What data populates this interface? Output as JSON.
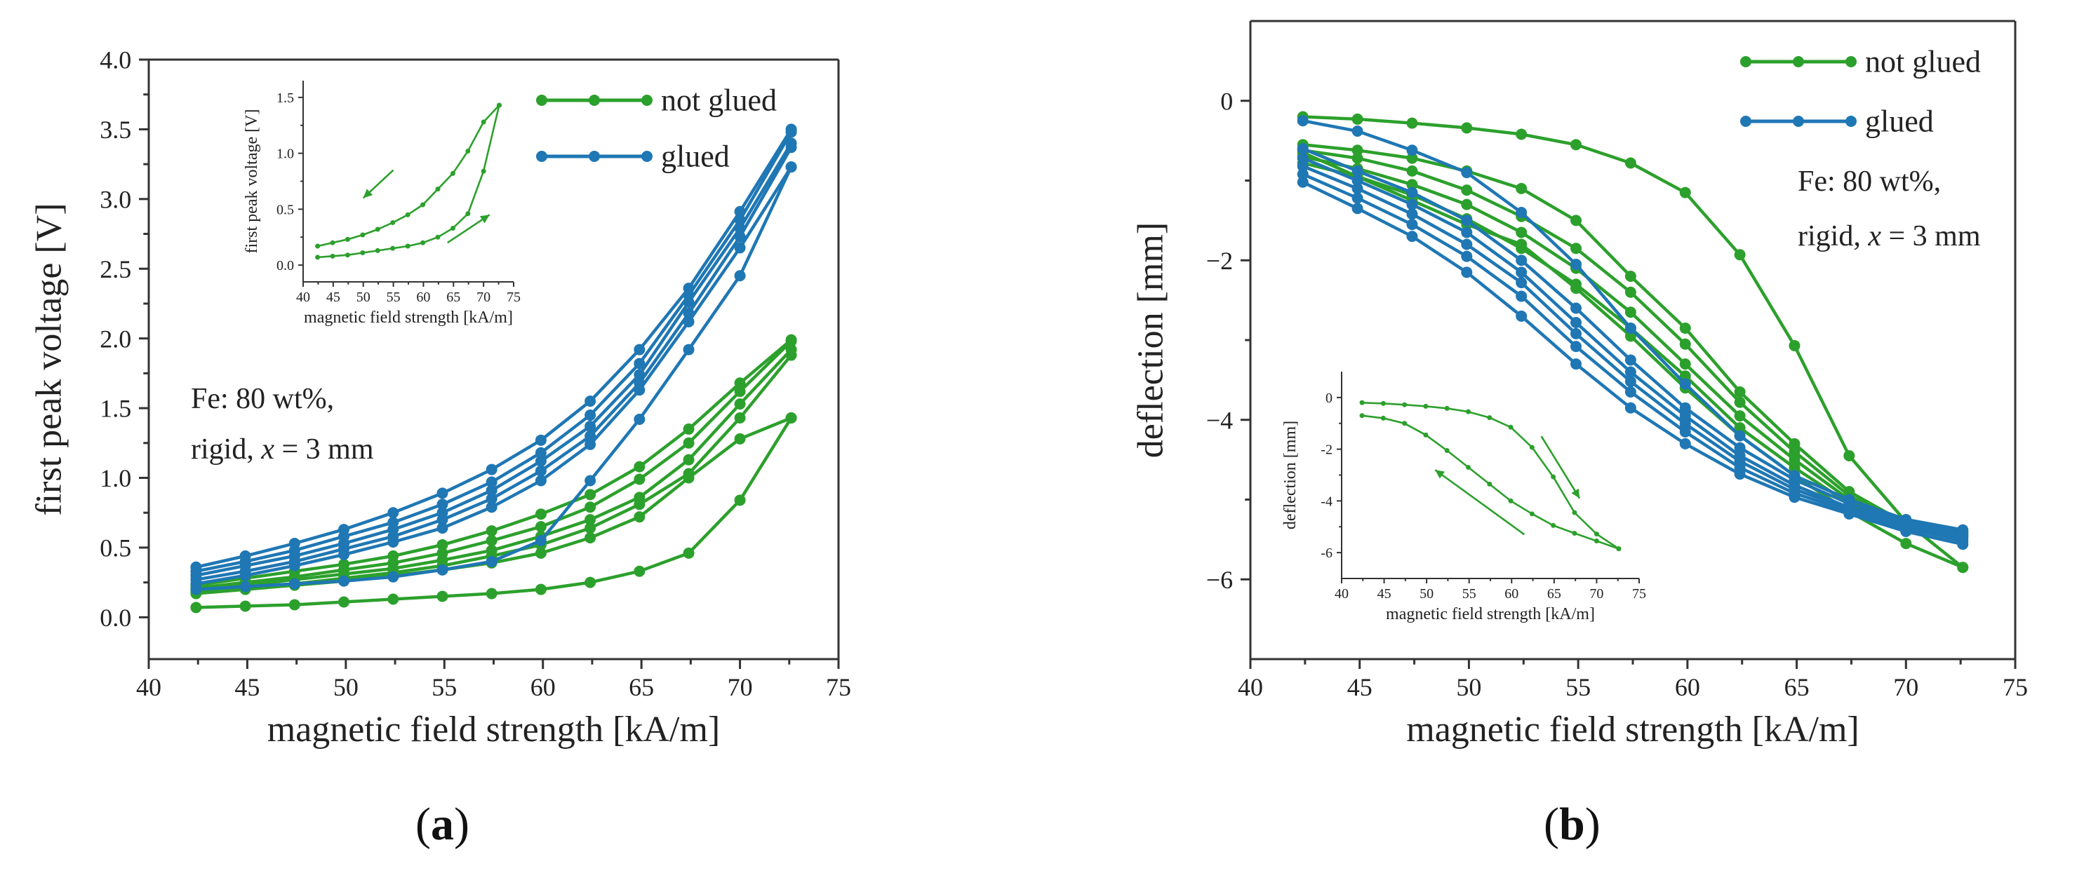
{
  "colors": {
    "not_glued": "#2ca02c",
    "glued": "#1f77b4",
    "axis": "#333333"
  },
  "panel_labels": [
    {
      "open": "(",
      "letter": "a",
      "close": ")"
    },
    {
      "open": "(",
      "letter": "b",
      "close": ")"
    }
  ],
  "chart_data": [
    {
      "id": "a",
      "type": "line",
      "title": "",
      "xlabel": "magnetic field strength [kA/m]",
      "ylabel": "first peak voltage [V]",
      "xlim": [
        40,
        75
      ],
      "ylim": [
        -0.3,
        4.0
      ],
      "xticks": [
        40,
        45,
        50,
        55,
        60,
        65,
        70,
        75
      ],
      "yticks": [
        0.0,
        0.5,
        1.0,
        1.5,
        2.0,
        2.5,
        3.0,
        3.5,
        4.0
      ],
      "ytick_labels": [
        "0.0",
        "0.5",
        "1.0",
        "1.5",
        "2.0",
        "2.5",
        "3.0",
        "3.5",
        "4.0"
      ],
      "legend": {
        "position": "top-right",
        "entries": [
          {
            "label": "not glued",
            "group": "not_glued"
          },
          {
            "label": "glued",
            "group": "glued"
          }
        ]
      },
      "annotation": {
        "line1": "Fe: 80 wt%,",
        "line2_prefix": "rigid, ",
        "line2_var": "x",
        "line2_suffix": " = 3 mm"
      },
      "x": [
        42.4,
        44.9,
        47.4,
        49.9,
        52.4,
        54.9,
        57.4,
        59.9,
        62.4,
        64.9,
        67.4,
        70.0,
        72.6
      ],
      "series": [
        {
          "name": "not glued 1",
          "group": "not_glued",
          "values": [
            0.07,
            0.08,
            0.09,
            0.11,
            0.13,
            0.15,
            0.17,
            0.2,
            0.25,
            0.33,
            0.46,
            0.84,
            1.43
          ]
        },
        {
          "name": "not glued 2",
          "group": "not_glued",
          "values": [
            0.17,
            0.2,
            0.23,
            0.26,
            0.3,
            0.34,
            0.39,
            0.46,
            0.57,
            0.72,
            1.0,
            1.28,
            1.43
          ]
        },
        {
          "name": "not glued 3",
          "group": "not_glued",
          "values": [
            0.18,
            0.21,
            0.24,
            0.28,
            0.32,
            0.37,
            0.44,
            0.52,
            0.64,
            0.81,
            1.03,
            1.43,
            1.88
          ]
        },
        {
          "name": "not glued 4",
          "group": "not_glued",
          "values": [
            0.2,
            0.23,
            0.27,
            0.31,
            0.35,
            0.41,
            0.48,
            0.58,
            0.7,
            0.86,
            1.13,
            1.53,
            1.92
          ]
        },
        {
          "name": "not glued 5",
          "group": "not_glued",
          "values": [
            0.21,
            0.25,
            0.29,
            0.34,
            0.39,
            0.46,
            0.55,
            0.65,
            0.79,
            0.99,
            1.25,
            1.62,
            1.98
          ]
        },
        {
          "name": "not glued 6",
          "group": "not_glued",
          "values": [
            0.23,
            0.28,
            0.33,
            0.38,
            0.44,
            0.52,
            0.62,
            0.74,
            0.88,
            1.08,
            1.35,
            1.68,
            1.99
          ]
        },
        {
          "name": "glued 1",
          "group": "glued",
          "values": [
            0.2,
            0.22,
            0.24,
            0.26,
            0.29,
            0.34,
            0.4,
            0.55,
            0.98,
            1.42,
            1.92,
            2.45,
            3.23
          ]
        },
        {
          "name": "glued 2",
          "group": "glued",
          "values": [
            0.24,
            0.3,
            0.37,
            0.45,
            0.54,
            0.64,
            0.79,
            0.98,
            1.24,
            1.63,
            2.12,
            2.65,
            3.23
          ]
        },
        {
          "name": "glued 3",
          "group": "glued",
          "values": [
            0.27,
            0.33,
            0.4,
            0.49,
            0.58,
            0.7,
            0.85,
            1.05,
            1.3,
            1.68,
            2.18,
            2.73,
            3.37
          ]
        },
        {
          "name": "glued 4",
          "group": "glued",
          "values": [
            0.3,
            0.37,
            0.44,
            0.53,
            0.63,
            0.75,
            0.91,
            1.12,
            1.37,
            1.74,
            2.26,
            2.79,
            3.4
          ]
        },
        {
          "name": "glued 5",
          "group": "glued",
          "values": [
            0.33,
            0.4,
            0.48,
            0.58,
            0.68,
            0.81,
            0.97,
            1.18,
            1.45,
            1.82,
            2.31,
            2.85,
            3.48
          ]
        },
        {
          "name": "glued 6",
          "group": "glued",
          "values": [
            0.36,
            0.44,
            0.53,
            0.63,
            0.75,
            0.89,
            1.06,
            1.27,
            1.55,
            1.92,
            2.36,
            2.91,
            3.5
          ]
        }
      ],
      "inset": {
        "xlabel": "magnetic field strength [kA/m]",
        "ylabel": "first peak voltage [V]",
        "xlim": [
          40,
          75
        ],
        "ylim": [
          -0.15,
          1.65
        ],
        "xticks": [
          40,
          45,
          50,
          55,
          60,
          65,
          70,
          75
        ],
        "yticks": [
          0.0,
          0.5,
          1.0,
          1.5
        ],
        "ytick_labels": [
          "0.0",
          "0.5",
          "1.0",
          "1.5"
        ],
        "x": [
          42.4,
          44.9,
          47.4,
          49.9,
          52.4,
          54.9,
          57.4,
          59.9,
          62.4,
          64.9,
          67.4,
          70.0,
          72.6
        ],
        "series": [
          {
            "name": "up",
            "group": "not_glued",
            "values": [
              0.07,
              0.08,
              0.09,
              0.11,
              0.13,
              0.15,
              0.17,
              0.2,
              0.25,
              0.33,
              0.46,
              0.84,
              1.43
            ]
          },
          {
            "name": "down",
            "group": "not_glued",
            "values": [
              0.17,
              0.2,
              0.23,
              0.27,
              0.32,
              0.38,
              0.45,
              0.54,
              0.68,
              0.82,
              1.02,
              1.28,
              1.43
            ]
          }
        ],
        "arrows": [
          {
            "from": [
              55,
              0.85
            ],
            "to": [
              50,
              0.6
            ]
          },
          {
            "from": [
              64,
              0.2
            ],
            "to": [
              71,
              0.45
            ]
          }
        ]
      }
    },
    {
      "id": "b",
      "type": "line",
      "title": "",
      "xlabel": "magnetic field strength [kA/m]",
      "ylabel": "deflection [mm]",
      "xlim": [
        40,
        75
      ],
      "ylim": [
        -7.0,
        1.0
      ],
      "xticks": [
        40,
        45,
        50,
        55,
        60,
        65,
        70,
        75
      ],
      "yticks": [
        -6,
        -4,
        -2,
        0
      ],
      "ytick_labels": [
        "−6",
        "−4",
        "−2",
        "0"
      ],
      "legend": {
        "position": "top-right",
        "entries": [
          {
            "label": "not glued",
            "group": "not_glued"
          },
          {
            "label": "glued",
            "group": "glued"
          }
        ]
      },
      "annotation": {
        "line1": "Fe: 80 wt%,",
        "line2_prefix": "rigid, ",
        "line2_var": "x",
        "line2_suffix": " = 3 mm"
      },
      "x": [
        42.4,
        44.9,
        47.4,
        49.9,
        52.4,
        54.9,
        57.4,
        59.9,
        62.4,
        64.9,
        67.4,
        70.0,
        72.6
      ],
      "series": [
        {
          "name": "not glued 1",
          "group": "not_glued",
          "values": [
            -0.2,
            -0.23,
            -0.28,
            -0.34,
            -0.42,
            -0.55,
            -0.78,
            -1.15,
            -1.93,
            -3.07,
            -4.45,
            -5.28,
            -5.85
          ]
        },
        {
          "name": "not glued 2",
          "group": "not_glued",
          "values": [
            -0.55,
            -0.62,
            -0.72,
            -0.88,
            -1.1,
            -1.5,
            -2.2,
            -2.85,
            -3.65,
            -4.3,
            -4.9,
            -5.3,
            -5.4
          ]
        },
        {
          "name": "not glued 3",
          "group": "not_glued",
          "values": [
            -0.62,
            -0.72,
            -0.88,
            -1.12,
            -1.45,
            -1.85,
            -2.4,
            -3.05,
            -3.78,
            -4.4,
            -4.95,
            -5.32,
            -5.42
          ]
        },
        {
          "name": "not glued 4",
          "group": "not_glued",
          "values": [
            -0.7,
            -0.85,
            -1.05,
            -1.3,
            -1.65,
            -2.1,
            -2.65,
            -3.3,
            -3.95,
            -4.5,
            -5.0,
            -5.35,
            -5.45
          ]
        },
        {
          "name": "not glued 5",
          "group": "not_glued",
          "values": [
            -0.78,
            -0.95,
            -1.18,
            -1.48,
            -1.85,
            -2.3,
            -2.85,
            -3.45,
            -4.1,
            -4.6,
            -5.05,
            -5.38,
            -5.47
          ]
        },
        {
          "name": "not glued 6",
          "group": "not_glued",
          "values": [
            -0.65,
            -0.95,
            -1.25,
            -1.55,
            -1.8,
            -2.35,
            -2.95,
            -3.6,
            -4.2,
            -4.7,
            -5.15,
            -5.55,
            -5.85
          ]
        },
        {
          "name": "glued 1",
          "group": "glued",
          "values": [
            -0.25,
            -0.38,
            -0.62,
            -0.9,
            -1.4,
            -2.05,
            -2.85,
            -3.55,
            -4.2,
            -4.7,
            -5.0,
            -5.25,
            -5.38
          ]
        },
        {
          "name": "glued 2",
          "group": "glued",
          "values": [
            -0.6,
            -0.88,
            -1.15,
            -1.5,
            -2.0,
            -2.6,
            -3.25,
            -3.85,
            -4.35,
            -4.75,
            -5.05,
            -5.28,
            -5.42
          ]
        },
        {
          "name": "glued 3",
          "group": "glued",
          "values": [
            -0.72,
            -1.0,
            -1.3,
            -1.65,
            -2.15,
            -2.78,
            -3.4,
            -3.95,
            -4.45,
            -4.82,
            -5.1,
            -5.3,
            -5.45
          ]
        },
        {
          "name": "glued 4",
          "group": "glued",
          "values": [
            -0.82,
            -1.1,
            -1.42,
            -1.8,
            -2.28,
            -2.92,
            -3.52,
            -4.05,
            -4.52,
            -4.87,
            -5.12,
            -5.33,
            -5.48
          ]
        },
        {
          "name": "glued 5",
          "group": "glued",
          "values": [
            -0.92,
            -1.22,
            -1.55,
            -1.95,
            -2.45,
            -3.08,
            -3.65,
            -4.15,
            -4.6,
            -4.92,
            -5.15,
            -5.36,
            -5.52
          ]
        },
        {
          "name": "glued 6",
          "group": "glued",
          "values": [
            -1.02,
            -1.35,
            -1.7,
            -2.15,
            -2.7,
            -3.3,
            -3.85,
            -4.3,
            -4.68,
            -4.97,
            -5.18,
            -5.4,
            -5.56
          ]
        }
      ],
      "inset": {
        "xlabel": "magnetic field strength [kA/m]",
        "ylabel": "deflection [mm]",
        "xlim": [
          40,
          75
        ],
        "ylim": [
          -7.0,
          1.0
        ],
        "xticks": [
          40,
          45,
          50,
          55,
          60,
          65,
          70,
          75
        ],
        "yticks": [
          -6,
          -4,
          -2,
          0
        ],
        "ytick_labels": [
          "-6",
          "-4",
          "-2",
          "0"
        ],
        "x": [
          42.4,
          44.9,
          47.4,
          49.9,
          52.4,
          54.9,
          57.4,
          59.9,
          62.4,
          64.9,
          67.4,
          70.0,
          72.6
        ],
        "series": [
          {
            "name": "up",
            "group": "not_glued",
            "values": [
              -0.2,
              -0.23,
              -0.28,
              -0.34,
              -0.42,
              -0.55,
              -0.78,
              -1.15,
              -1.93,
              -3.07,
              -4.45,
              -5.28,
              -5.85
            ]
          },
          {
            "name": "down",
            "group": "not_glued",
            "values": [
              -0.7,
              -0.8,
              -1.0,
              -1.45,
              -2.05,
              -2.7,
              -3.35,
              -4.0,
              -4.5,
              -4.95,
              -5.25,
              -5.55,
              -5.85
            ]
          }
        ],
        "arrows": [
          {
            "from": [
              63.5,
              -1.5
            ],
            "to": [
              68,
              -3.9
            ]
          },
          {
            "from": [
              61.5,
              -5.3
            ],
            "to": [
              51,
              -2.8
            ]
          }
        ]
      }
    }
  ]
}
